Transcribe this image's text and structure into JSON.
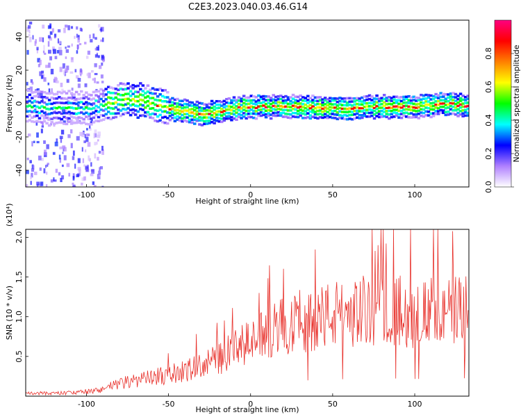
{
  "title": "C2E3.2023.040.03.46.G14",
  "chart_data": [
    {
      "type": "heatmap",
      "xlabel": "Height of straight line (km)",
      "ylabel": "Frequency (Hz)",
      "xlim": [
        -137,
        133
      ],
      "ylim": [
        -50,
        50
      ],
      "xticks": [
        -100,
        -50,
        0,
        50,
        100
      ],
      "yticks": [
        -40,
        -20,
        0,
        20,
        40
      ],
      "colorbar": {
        "label": "Normalized spectral amplitude",
        "range": [
          0.0,
          1.0
        ],
        "ticks": [
          "0.0",
          "0.2",
          "0.4",
          "0.6",
          "0.8"
        ],
        "colors": [
          "#ffffff",
          "#b080ff",
          "#0000ff",
          "#00ffff",
          "#00ff00",
          "#ffff00",
          "#ff8000",
          "#ff0000",
          "#ff0080"
        ]
      },
      "ridge": {
        "x": [
          -137,
          -120,
          -100,
          -90,
          -80,
          -70,
          -60,
          -50,
          -40,
          -30,
          -20,
          -10,
          0,
          25,
          50,
          75,
          100,
          120,
          133
        ],
        "y": [
          -2,
          -3,
          -3,
          -1,
          2,
          2,
          0,
          -3,
          -5,
          -6,
          -5,
          -3,
          -2,
          -2,
          -3,
          -2,
          -2,
          0,
          -2
        ]
      }
    },
    {
      "type": "line",
      "xlabel": "Height of straight line (km)",
      "ylabel": "SNR (10 * v/v)",
      "multiplier": "(x10⁴)",
      "xlim": [
        -137,
        133
      ],
      "ylim": [
        0,
        2.1
      ],
      "xticks": [
        -100,
        -50,
        0,
        50,
        100
      ],
      "yticks": [
        "0.5",
        "1.0",
        "1.5",
        "2.0"
      ],
      "color": "#e8302a",
      "trend": {
        "x": [
          -137,
          -110,
          -95,
          -80,
          -60,
          -40,
          -20,
          0,
          20,
          40,
          60,
          80,
          100,
          120,
          133
        ],
        "y": [
          0.03,
          0.04,
          0.06,
          0.15,
          0.22,
          0.3,
          0.45,
          0.65,
          0.85,
          0.95,
          1.0,
          1.05,
          1.0,
          1.0,
          1.05
        ]
      }
    }
  ]
}
